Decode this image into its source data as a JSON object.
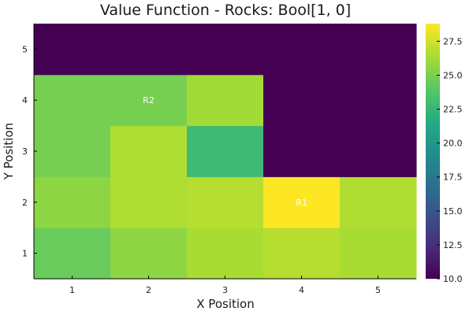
{
  "chart_data": {
    "type": "heatmap",
    "title": "Value Function - Rocks: Bool[1, 0]",
    "xlabel": "X Position",
    "ylabel": "Y Position",
    "x": [
      1,
      2,
      3,
      4,
      5
    ],
    "y": [
      1,
      2,
      3,
      4,
      5
    ],
    "x_tick_labels": [
      "1",
      "2",
      "3",
      "4",
      "5"
    ],
    "y_tick_labels": [
      "1",
      "2",
      "3",
      "4",
      "5"
    ],
    "colormap": "viridis",
    "color_range": [
      10,
      28.8
    ],
    "colorbar_ticks": [
      10.0,
      12.5,
      15.0,
      17.5,
      20.0,
      22.5,
      25.0,
      27.5
    ],
    "colorbar_tick_labels": [
      "10.0",
      "12.5",
      "15.0",
      "17.5",
      "20.0",
      "22.5",
      "25.0",
      "27.5"
    ],
    "values_by_row_y": [
      [
        24.5,
        25.6,
        26.4,
        26.8,
        26.4
      ],
      [
        25.6,
        26.6,
        26.8,
        28.8,
        26.6
      ],
      [
        24.9,
        26.6,
        22.8,
        10.0,
        10.0
      ],
      [
        24.9,
        24.9,
        26.2,
        10.0,
        10.0
      ],
      [
        10.0,
        10.0,
        10.0,
        10.0,
        10.0
      ]
    ],
    "annotations": [
      {
        "x": 4,
        "y": 2,
        "text": "R1"
      },
      {
        "x": 2,
        "y": 4,
        "text": "R2"
      }
    ],
    "grid": false,
    "legend": "colorbar-right"
  }
}
